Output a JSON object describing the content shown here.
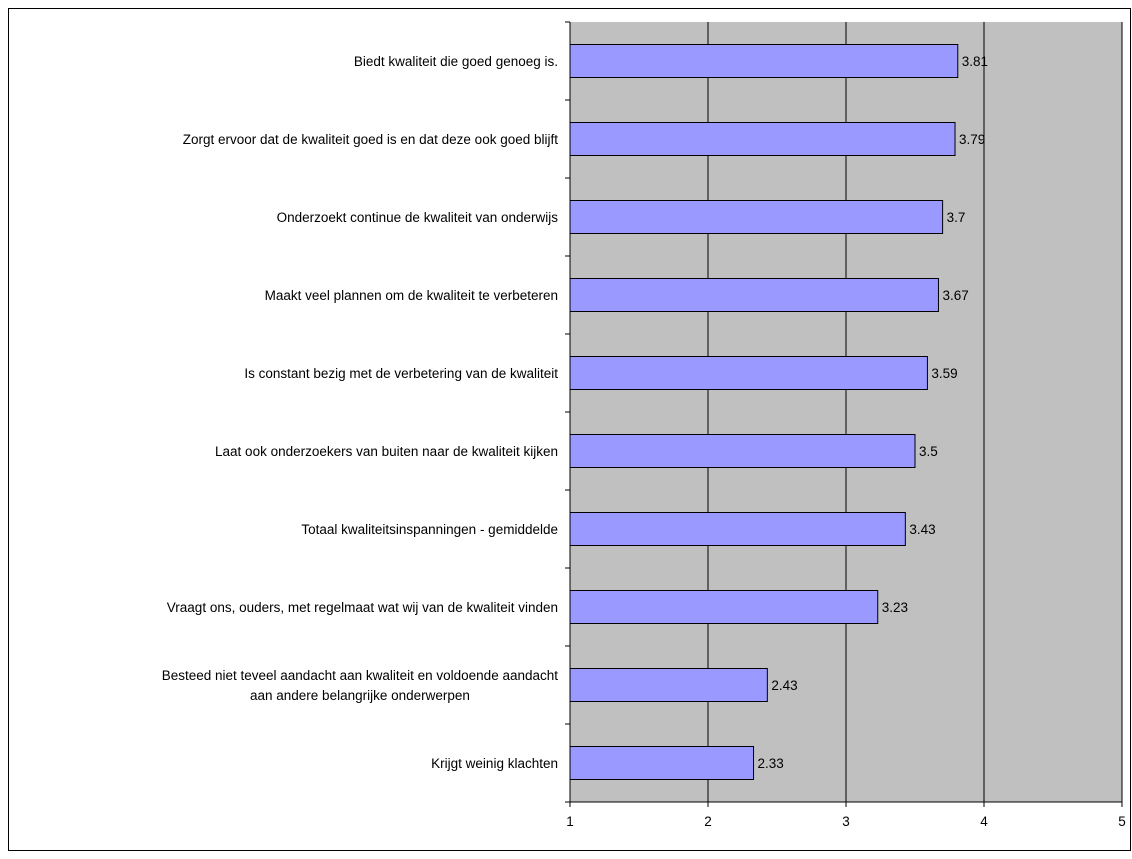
{
  "chart_data": {
    "type": "bar",
    "orientation": "horizontal",
    "title": "",
    "xlabel": "",
    "ylabel": "",
    "xlim": [
      1,
      5
    ],
    "x_ticks": [
      "1",
      "2",
      "3",
      "4",
      "5"
    ],
    "grid": true,
    "legend": "none",
    "colors": {
      "bar_fill": "#9999ff",
      "bar_stroke": "#000000",
      "plot_background": "#c0c0c0",
      "gridline": "#000000"
    },
    "categories": [
      [
        "Biedt kwaliteit die goed genoeg is."
      ],
      [
        "Zorgt ervoor dat de kwaliteit goed is en dat deze ook goed blijft"
      ],
      [
        "Onderzoekt continue de kwaliteit van onderwijs"
      ],
      [
        "Maakt veel plannen om de kwaliteit te verbeteren"
      ],
      [
        "Is constant bezig met de verbetering van de kwaliteit"
      ],
      [
        "Laat ook onderzoekers van buiten naar de kwaliteit kijken"
      ],
      [
        "Totaal kwaliteitsinspanningen - gemiddelde"
      ],
      [
        "Vraagt ons, ouders, met regelmaat wat wij van de kwaliteit vinden"
      ],
      [
        "Besteed niet teveel aandacht aan kwaliteit en voldoende aandacht",
        "aan andere belangrijke onderwerpen"
      ],
      [
        "Krijgt weinig klachten"
      ]
    ],
    "values": [
      3.81,
      3.79,
      3.7,
      3.67,
      3.59,
      3.5,
      3.43,
      3.23,
      2.43,
      2.33
    ],
    "data_labels": [
      "3.81",
      "3.79",
      "3.7",
      "3.67",
      "3.59",
      "3.5",
      "3.43",
      "3.23",
      "2.43",
      "2.33"
    ]
  }
}
